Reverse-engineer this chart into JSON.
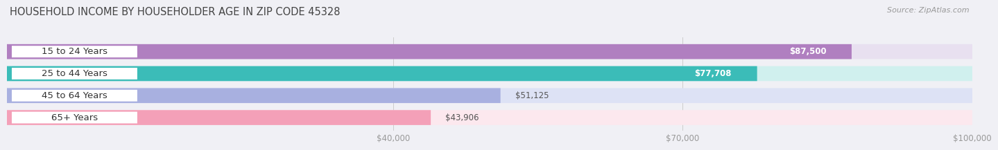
{
  "title": "HOUSEHOLD INCOME BY HOUSEHOLDER AGE IN ZIP CODE 45328",
  "source": "Source: ZipAtlas.com",
  "categories": [
    "15 to 24 Years",
    "25 to 44 Years",
    "45 to 64 Years",
    "65+ Years"
  ],
  "values": [
    87500,
    77708,
    51125,
    43906
  ],
  "labels": [
    "$87,500",
    "$77,708",
    "$51,125",
    "$43,906"
  ],
  "bar_colors": [
    "#b07fc0",
    "#3bbcb8",
    "#a8b0e0",
    "#f4a0b8"
  ],
  "bar_bg_colors": [
    "#e8e0f0",
    "#d0f0ee",
    "#dde2f5",
    "#fce8ee"
  ],
  "label_inside": [
    true,
    true,
    false,
    false
  ],
  "xlim": [
    0,
    100000
  ],
  "xmin": 0,
  "xticks": [
    40000,
    70000,
    100000
  ],
  "xtick_labels": [
    "$40,000",
    "$70,000",
    "$100,000"
  ],
  "background_color": "#f0f0f5",
  "bar_bg_white": "#ececf4",
  "title_fontsize": 10.5,
  "source_fontsize": 8,
  "label_fontsize": 8.5,
  "cat_fontsize": 9.5,
  "cat_label_color": "#333333",
  "cat_bg_color": "#ffffff"
}
